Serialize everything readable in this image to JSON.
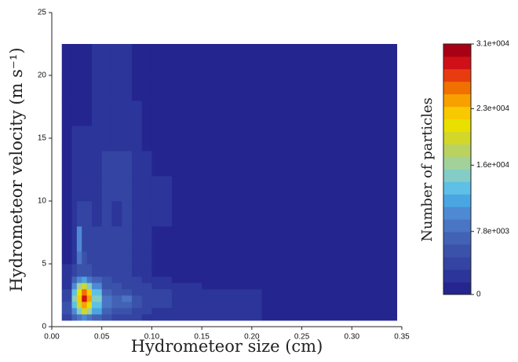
{
  "chart_data": {
    "type": "heatmap",
    "x_label": "Hydrometeor size (cm)",
    "y_label": "Hydrometeor velocity (m s⁻¹)",
    "x_edges": [
      0.01,
      0.02,
      0.025,
      0.03,
      0.035,
      0.04,
      0.05,
      0.06,
      0.07,
      0.08,
      0.09,
      0.1,
      0.12,
      0.15,
      0.21,
      0.345
    ],
    "y_edges": [
      0.5,
      1,
      1.5,
      2,
      2.5,
      3,
      3.5,
      4,
      5,
      6,
      8,
      10,
      12,
      14,
      16,
      18,
      20,
      22.5
    ],
    "values": [
      [
        3800,
        6900,
        8450,
        10000,
        8450,
        6900,
        5350,
        3800,
        3800,
        3800,
        2250,
        2250,
        2250,
        2250,
        700
      ],
      [
        5350,
        10000,
        14650,
        19300,
        16200,
        11550,
        6900,
        5350,
        5350,
        3800,
        3800,
        2250,
        2250,
        2250,
        700
      ],
      [
        5350,
        13100,
        19300,
        23950,
        20850,
        13100,
        8450,
        6900,
        6900,
        5350,
        3800,
        3800,
        2250,
        2250,
        700
      ],
      [
        3800,
        14650,
        22400,
        28600,
        23950,
        14650,
        8450,
        6900,
        8450,
        5350,
        3800,
        3800,
        2250,
        2250,
        700
      ],
      [
        3800,
        13100,
        20850,
        25500,
        22400,
        13100,
        6900,
        5350,
        5350,
        3800,
        3800,
        3800,
        2250,
        2250,
        700
      ],
      [
        2250,
        10000,
        16200,
        19300,
        14650,
        10000,
        5350,
        5350,
        3800,
        3800,
        3800,
        2250,
        2250,
        700,
        700
      ],
      [
        2250,
        6900,
        10000,
        11550,
        8450,
        6900,
        5350,
        3800,
        3800,
        3800,
        2250,
        2250,
        700,
        700,
        700
      ],
      [
        2250,
        3800,
        5350,
        5350,
        5350,
        3800,
        3800,
        3800,
        3800,
        2250,
        2250,
        700,
        700,
        700,
        700
      ],
      [
        700,
        2250,
        8450,
        5350,
        3800,
        3800,
        3800,
        3800,
        3800,
        2250,
        2250,
        700,
        700,
        700,
        700
      ],
      [
        700,
        2250,
        10000,
        3800,
        3800,
        3800,
        3800,
        3800,
        3800,
        2250,
        2250,
        700,
        700,
        700,
        700
      ],
      [
        700,
        2250,
        3800,
        3800,
        3800,
        2250,
        3800,
        2250,
        3800,
        2250,
        2250,
        2250,
        700,
        700,
        700
      ],
      [
        700,
        2250,
        2250,
        2250,
        2250,
        2250,
        3800,
        3800,
        3800,
        2250,
        2250,
        2250,
        700,
        700,
        700
      ],
      [
        700,
        2250,
        2250,
        2250,
        2250,
        2250,
        3800,
        3800,
        3800,
        2250,
        2250,
        700,
        700,
        700,
        700
      ],
      [
        700,
        2250,
        2250,
        2250,
        2250,
        2250,
        2250,
        2250,
        2250,
        2250,
        700,
        700,
        700,
        700,
        700
      ],
      [
        700,
        700,
        700,
        700,
        700,
        2250,
        2250,
        2250,
        2250,
        2250,
        700,
        700,
        700,
        700,
        700
      ],
      [
        700,
        700,
        700,
        700,
        700,
        2250,
        2250,
        2250,
        2250,
        700,
        700,
        700,
        700,
        700,
        700
      ],
      [
        700,
        700,
        700,
        700,
        700,
        2250,
        2250,
        2250,
        2250,
        700,
        700,
        700,
        700,
        700,
        700
      ]
    ],
    "xlim": [
      0,
      0.35
    ],
    "ylim": [
      0,
      25
    ],
    "xticks": [
      {
        "value": 0,
        "label": "0.00"
      },
      0.05,
      {
        "value": 0.1,
        "label": "0.10"
      },
      0.15,
      {
        "value": 0.2,
        "label": "0.20"
      },
      0.25,
      {
        "value": 0.3,
        "label": "0.30"
      },
      0.35
    ],
    "yticks": [
      0,
      5,
      10,
      15,
      20,
      25
    ],
    "colorbar": {
      "label": "Number of particles",
      "lim": [
        0,
        31000
      ],
      "ticks": [
        0,
        {
          "value": 7800,
          "label": "7.8e+003"
        },
        {
          "value": 16000,
          "label": "1.6e+004"
        },
        {
          "value": 23000,
          "label": "2.3e+004"
        },
        {
          "value": 31000,
          "label": "3.1e+004"
        }
      ],
      "colors": [
        "#25258f",
        "#2c3599",
        "#3444a2",
        "#3b52ab",
        "#4262b6",
        "#4a74c4",
        "#4e8ad4",
        "#4aa6e2",
        "#5ec0e6",
        "#84cdc6",
        "#a2d19a",
        "#b9d260",
        "#d2d72a",
        "#e9e000",
        "#f8c800",
        "#f8a000",
        "#f07000",
        "#e83c10",
        "#d01018",
        "#a80014"
      ]
    }
  }
}
